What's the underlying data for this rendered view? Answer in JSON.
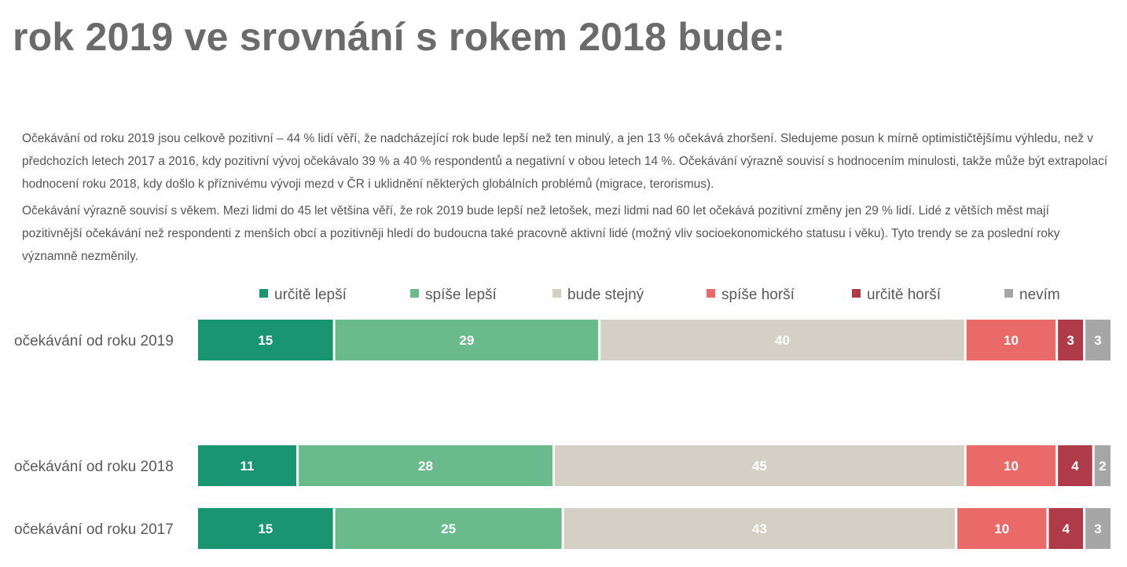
{
  "title": "rok 2019 ve srovnání s rokem 2018 bude:",
  "paragraphs": [
    "Očekávání od roku 2019 jsou celkově pozitivní – 44 % lidí věří, že nadcházející rok bude lepší než ten minulý, a jen 13 % očekává zhoršení. Sledujeme posun k mírně optimističtějšímu výhledu, než v předchozích letech 2017 a 2016, kdy pozitivní vývoj očekávalo 39 % a 40 % respondentů a negativní v obou letech 14 %. Očekávání výrazně souvisí s hodnocením minulosti, takže může být extrapolací hodnocení roku 2018, kdy došlo k příznivému vývoji mezd v ČR i uklidnění některých globálních problémů (migrace, terorismus).",
    "Očekávání výrazně souvisí s věkem. Mezi lidmi do 45 let většina věří, že rok 2019 bude lepší než letošek, mezi lidmi nad 60 let očekává pozitivní změny jen 29 % lidí. Lidé z větších měst mají pozitivnější očekávání než respondenti z menších obcí a pozitivněji hledí do budoucna také pracovně aktivní lidé (možný vliv socioekonomického statusu i věku). Tyto trendy se za poslední roky významně nezměnily."
  ],
  "chart_data": {
    "type": "bar",
    "orientation": "horizontal",
    "stacked": true,
    "legend_position": "top",
    "categories": [
      "očekávání od roku 2019",
      "očekávání od roku 2018",
      "očekávání od roku 2017"
    ],
    "series": [
      {
        "name": "určitě lepší",
        "color": "#1a9571",
        "label_color": "#ffffff",
        "values": [
          15,
          11,
          15
        ]
      },
      {
        "name": "spíše lepší",
        "color": "#6aba8c",
        "label_color": "#ffffff",
        "values": [
          29,
          28,
          25
        ]
      },
      {
        "name": "bude stejný",
        "color": "#d5d0c5",
        "label_color": "#ffffff",
        "values": [
          40,
          45,
          43
        ]
      },
      {
        "name": "spíše horší",
        "color": "#e96a68",
        "label_color": "#ffffff",
        "values": [
          10,
          10,
          10
        ]
      },
      {
        "name": "určitě horší",
        "color": "#b03b48",
        "label_color": "#ffffff",
        "values": [
          3,
          4,
          4
        ]
      },
      {
        "name": "nevím",
        "color": "#a6a6a6",
        "label_color": "#ffffff",
        "values": [
          3,
          2,
          3
        ]
      }
    ]
  }
}
